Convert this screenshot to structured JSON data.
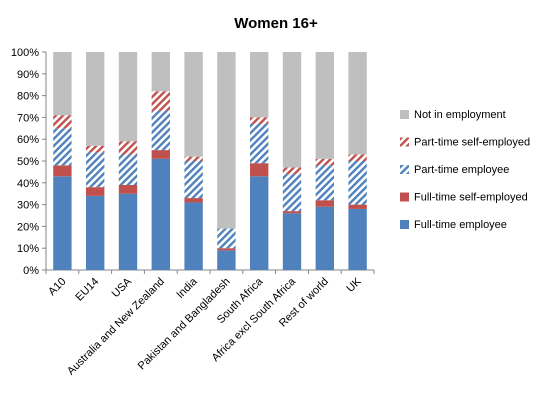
{
  "chart_data": {
    "type": "bar",
    "stacked": true,
    "title": "Women 16+",
    "ylim": [
      0,
      100
    ],
    "y_ticks": [
      "0%",
      "10%",
      "20%",
      "30%",
      "40%",
      "50%",
      "60%",
      "70%",
      "80%",
      "90%",
      "100%"
    ],
    "grid": false,
    "legend_position": "right",
    "categories": [
      "A10",
      "EU14",
      "USA",
      "Australia and New Zealand",
      "India",
      "Pakistan and Bangladesh",
      "South Africa",
      "Africa excl South Africa",
      "Rest of world",
      "UK"
    ],
    "series": [
      {
        "name": "Full-time employee",
        "color": "#4f81bd",
        "pattern": "solid",
        "values": [
          43,
          34,
          35,
          51,
          31,
          9,
          43,
          26,
          29,
          28
        ]
      },
      {
        "name": "Full-time self-employed",
        "color": "#c0504d",
        "pattern": "solid",
        "values": [
          5,
          4,
          4,
          4,
          2,
          1,
          6,
          1,
          3,
          2
        ]
      },
      {
        "name": "Part-time employee",
        "color": "#4f81bd",
        "pattern": "hatch",
        "values": [
          17,
          16,
          14,
          18,
          17,
          9,
          18,
          17,
          16,
          20
        ]
      },
      {
        "name": "Part-time self-employed",
        "color": "#c0504d",
        "pattern": "hatch",
        "values": [
          6,
          3,
          6,
          9,
          2,
          0,
          3,
          3,
          3,
          3
        ]
      },
      {
        "name": "Not in employment",
        "color": "#bfbfbf",
        "pattern": "solid",
        "values": [
          29,
          43,
          41,
          18,
          48,
          81,
          30,
          53,
          49,
          47
        ]
      }
    ]
  }
}
